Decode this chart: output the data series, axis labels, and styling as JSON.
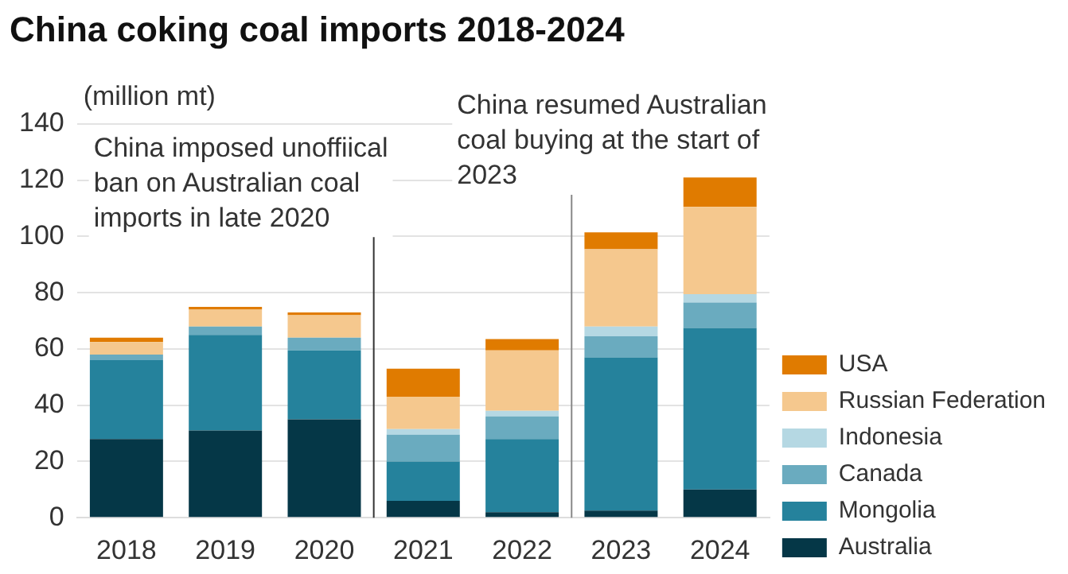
{
  "chart_data": {
    "type": "bar",
    "title": "China coking coal imports 2018-2024",
    "ylabel": "(million mt)",
    "categories": [
      "2018",
      "2019",
      "2020",
      "2021",
      "2022",
      "2023",
      "2024"
    ],
    "stacked": true,
    "series": [
      {
        "name": "Australia",
        "color": "#053747",
        "values": [
          28,
          31,
          35,
          6,
          2,
          2.5,
          10
        ]
      },
      {
        "name": "Mongolia",
        "color": "#25829c",
        "values": [
          28,
          34,
          24.5,
          14,
          26,
          54.5,
          57.5
        ]
      },
      {
        "name": "Canada",
        "color": "#6aabbf",
        "values": [
          2,
          3,
          4.5,
          9.5,
          8,
          7.5,
          9
        ]
      },
      {
        "name": "Indonesia",
        "color": "#b5d8e3",
        "values": [
          null,
          0,
          0,
          2,
          2,
          3.5,
          3
        ]
      },
      {
        "name": "Russian Federation",
        "color": "#f5c88e",
        "values": [
          4.5,
          6,
          8,
          11.5,
          21.5,
          27.5,
          31
        ]
      },
      {
        "name": "USA",
        "color": "#e07b00",
        "values": [
          1.5,
          1,
          1,
          10,
          4,
          6,
          10.5
        ]
      }
    ],
    "ylim": [
      0,
      140
    ],
    "yticks": [
      0,
      20,
      40,
      60,
      80,
      100,
      120,
      140
    ],
    "grid": "y",
    "legend": "right",
    "ref_lines": [
      {
        "axis": "x",
        "value": "2020",
        "label": "China imposed unoffiical ban on Australian coal imports in late 2020",
        "color": "#333333"
      },
      {
        "axis": "x",
        "value": "2022",
        "label": "China resumed Australian coal buying at the start of 2023",
        "color": "#888888"
      }
    ]
  }
}
